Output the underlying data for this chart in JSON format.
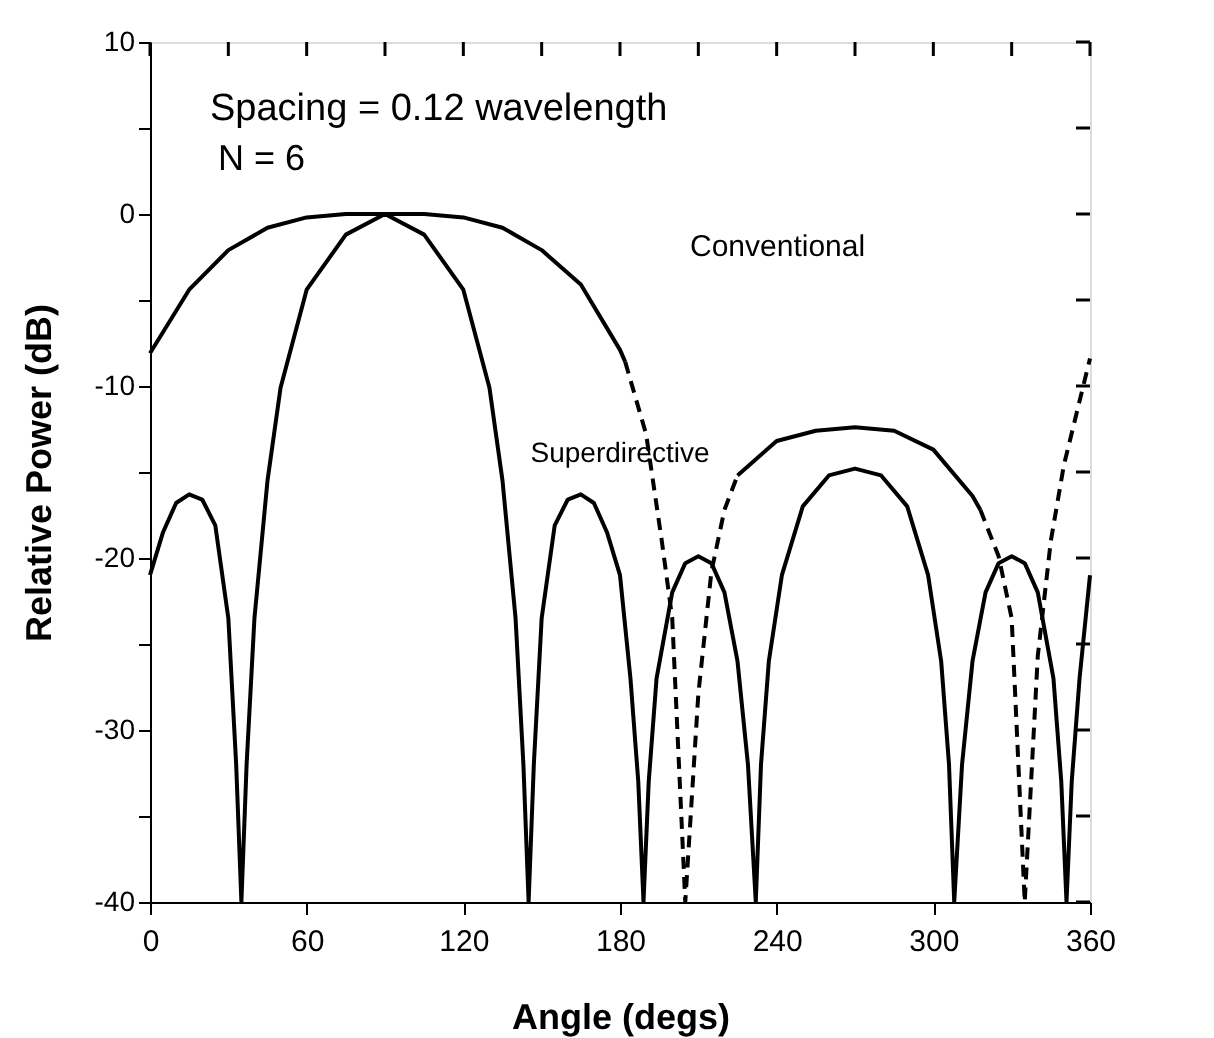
{
  "chart_data": {
    "type": "line",
    "xlabel": "Angle  (degs)",
    "ylabel": "Relative Power  (dB)",
    "annotations": [
      "Spacing = 0.12 wavelength",
      "N = 6",
      "Conventional",
      "Superdirective"
    ],
    "series": [
      {
        "color": "#000000",
        "line_style": "solid",
        "x": [
          0,
          15,
          30,
          45,
          60,
          75,
          90,
          105,
          120,
          135,
          150,
          165,
          180,
          182,
          200,
          225,
          240,
          255,
          270,
          285,
          300,
          315,
          318
        ],
        "values": [
          -8.1,
          -4.4,
          -2.1,
          -0.8,
          -0.2,
          0,
          0,
          0,
          -0.2,
          -0.8,
          -2.1,
          -4.1,
          -7.9,
          -8.6,
          null,
          -15.2,
          -13.2,
          -12.6,
          -12.4,
          -12.6,
          -13.7,
          -16.4,
          -17.2
        ]
      },
      {
        "color": "#000000",
        "line_style": "dashed",
        "x": [
          182,
          190,
          196,
          200,
          205,
          210,
          215,
          220,
          225,
          270,
          318,
          325,
          330,
          335,
          340,
          345,
          350,
          355,
          360
        ],
        "values": [
          -8.6,
          -12.8,
          -19,
          -23.5,
          -40,
          -27.9,
          -20.8,
          -17.2,
          -15.2,
          null,
          -17.2,
          -19.9,
          -23.5,
          -40,
          -25.7,
          -19,
          -14.6,
          -11.5,
          -8.4
        ]
      },
      {
        "color": "#000000",
        "line_style": "solid",
        "x": [
          0,
          5,
          10,
          15,
          20,
          25,
          30,
          33,
          35,
          37,
          40,
          45,
          50,
          60,
          75,
          90,
          105,
          120,
          130,
          135,
          140,
          143,
          145,
          147,
          150,
          155,
          160,
          165,
          170,
          175,
          180,
          184,
          187,
          189,
          191,
          194,
          200,
          205,
          210,
          215,
          220,
          225,
          229,
          232,
          234,
          237,
          242,
          250,
          260,
          270,
          280,
          290,
          298,
          303,
          306,
          308,
          311,
          315,
          320,
          325,
          330,
          335,
          340,
          346,
          349,
          351,
          353,
          356,
          360
        ],
        "values": [
          -21,
          -18.5,
          -16.8,
          -16.3,
          -16.6,
          -18.1,
          -23.5,
          -32,
          -40,
          -32,
          -23.5,
          -15.5,
          -10.1,
          -4.4,
          -1.2,
          0,
          -1.2,
          -4.4,
          -10.1,
          -15.5,
          -23.5,
          -32,
          -40,
          -32,
          -23.5,
          -18.1,
          -16.6,
          -16.3,
          -16.8,
          -18.5,
          -21,
          -27,
          -33,
          -40,
          -33,
          -27,
          -22,
          -20.3,
          -19.9,
          -20.3,
          -22,
          -26,
          -32,
          -40,
          -32,
          -26,
          -21,
          -17,
          -15.2,
          -14.8,
          -15.2,
          -17,
          -21,
          -26,
          -32,
          -40,
          -32,
          -26,
          -22,
          -20.3,
          -19.9,
          -20.3,
          -22,
          -27,
          -33,
          -40,
          -33,
          -27,
          -21
        ]
      }
    ],
    "xlim": [
      0,
      360
    ],
    "ylim": [
      -40,
      10
    ],
    "xticks": [
      0,
      {
        "value": 30,
        "label": null
      },
      60,
      {
        "value": 90,
        "label": null
      },
      120,
      {
        "value": 150,
        "label": null
      },
      180,
      {
        "value": 210,
        "label": null
      },
      240,
      {
        "value": 270,
        "label": null
      },
      300,
      {
        "value": 330,
        "label": null
      },
      360
    ],
    "yticks": [
      -40,
      {
        "value": -35,
        "label": null
      },
      -30,
      {
        "value": -25,
        "label": null
      },
      -20,
      {
        "value": -15,
        "label": null
      },
      -10,
      {
        "value": -5,
        "label": null
      },
      0,
      {
        "value": 5,
        "label": null
      },
      10
    ],
    "grid": false,
    "marker": "none"
  }
}
